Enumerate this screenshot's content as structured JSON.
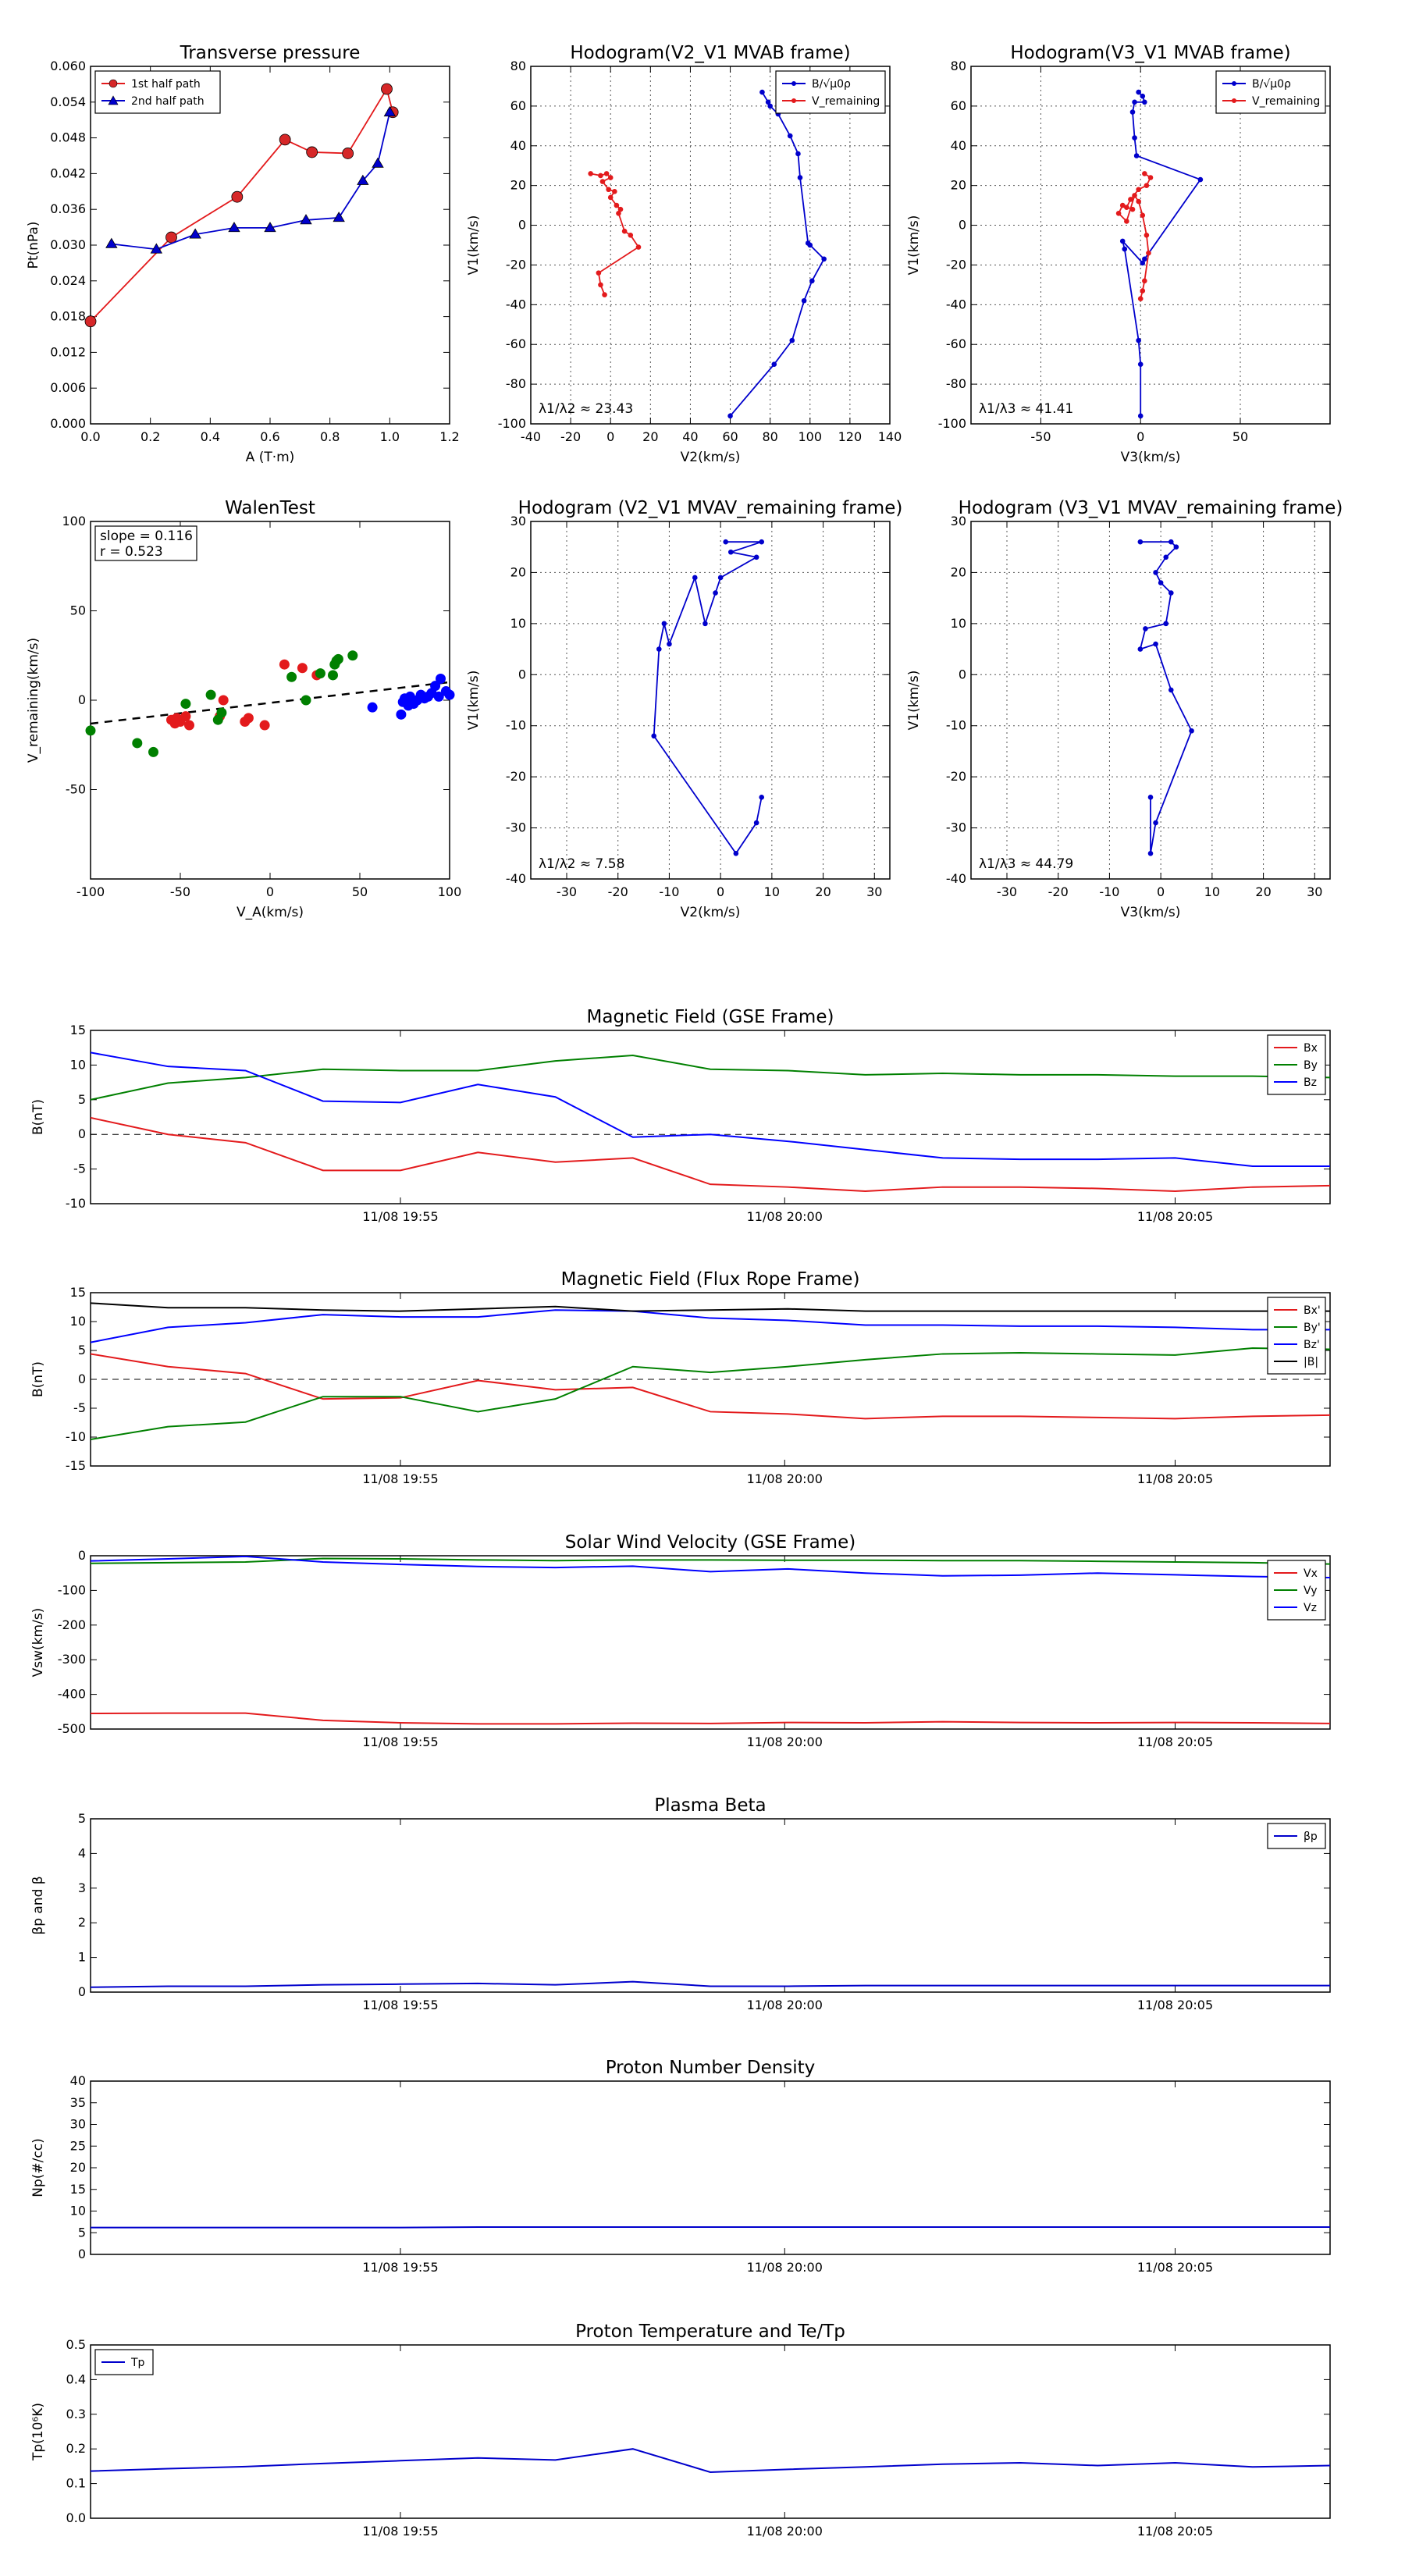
{
  "chart_data": [
    {
      "id": "tp",
      "type": "scatter",
      "title": "Transverse pressure",
      "xlabel": "A (T·m)",
      "ylabel": "Pt(nPa)",
      "xlim": [
        0.0,
        1.2
      ],
      "ylim": [
        0.0,
        0.06
      ],
      "xticks": [
        0.0,
        0.2,
        0.4,
        0.6,
        0.8,
        1.0,
        1.2
      ],
      "xtick_labels": [
        "0.0",
        "0.2",
        "0.4",
        "0.6",
        "0.8",
        "1.0",
        "1.2"
      ],
      "yticks": [
        0.0,
        0.006,
        0.012,
        0.018,
        0.024,
        0.03,
        0.036,
        0.042,
        0.048,
        0.054,
        0.06
      ],
      "ytick_labels": [
        "0.000",
        "0.006",
        "0.012",
        "0.018",
        "0.024",
        "0.030",
        "0.036",
        "0.042",
        "0.048",
        "0.054",
        "0.060"
      ],
      "grid": false,
      "legend": "top-left",
      "series": [
        {
          "name": "1st half path",
          "color": "#e31a1c",
          "marker": "circle",
          "line": true,
          "point_color": "#d62728",
          "x": [
            0.0,
            0.27,
            0.49,
            0.65,
            0.74,
            0.86,
            0.99,
            1.01
          ],
          "y": [
            0.0172,
            0.0313,
            0.0381,
            0.0477,
            0.0456,
            0.0454,
            0.0562,
            0.0523
          ]
        },
        {
          "name": "2nd half path",
          "color": "#0000cc",
          "marker": "triangle",
          "line": true,
          "point_color": "#0000cc",
          "x": [
            0.07,
            0.22,
            0.35,
            0.48,
            0.6,
            0.72,
            0.83,
            0.91,
            0.96,
            1.0
          ],
          "y": [
            0.0302,
            0.0293,
            0.0318,
            0.0329,
            0.0329,
            0.0342,
            0.0346,
            0.0408,
            0.0437,
            0.0523
          ]
        }
      ]
    },
    {
      "id": "h1",
      "type": "line",
      "title": "Hodogram(V2_V1 MVAB frame)",
      "xlabel": "V2(km/s)",
      "ylabel": "V1(km/s)",
      "xlim": [
        -40,
        140
      ],
      "ylim": [
        -100,
        80
      ],
      "xticks": [
        -40,
        -20,
        0,
        20,
        40,
        60,
        80,
        100,
        120,
        140
      ],
      "yticks": [
        -100,
        -80,
        -60,
        -40,
        -20,
        0,
        20,
        40,
        60,
        80
      ],
      "grid": true,
      "legend": "top-right",
      "annotation": "λ1/λ2 ≈ 23.43",
      "series": [
        {
          "name": "B/√μ0ρ",
          "color": "#0000cc",
          "marker": "dot",
          "x": [
            76,
            79,
            80,
            84,
            90,
            94,
            95,
            99,
            100,
            107,
            101,
            97,
            91,
            82,
            60
          ],
          "y": [
            67,
            62,
            60,
            56,
            45,
            36,
            24,
            -9,
            -10,
            -17,
            -28,
            -38,
            -58,
            -70,
            -96
          ]
        },
        {
          "name": "V_remaining",
          "color": "#e31a1c",
          "marker": "dot",
          "x": [
            -10,
            -5,
            -2,
            0,
            -4,
            -1,
            2,
            0,
            3,
            5,
            4,
            7,
            10,
            14,
            -6,
            -5,
            -3
          ],
          "y": [
            26,
            25,
            26,
            24,
            22,
            18,
            17,
            14,
            10,
            8,
            6,
            -3,
            -5,
            -11,
            -24,
            -30,
            -35
          ]
        }
      ]
    },
    {
      "id": "h2",
      "type": "line",
      "title": "Hodogram(V3_V1 MVAB frame)",
      "xlabel": "V3(km/s)",
      "ylabel": "V1(km/s)",
      "xlim": [
        -85,
        95
      ],
      "ylim": [
        -100,
        80
      ],
      "xticks": [
        -50,
        0,
        50
      ],
      "yticks": [
        -100,
        -80,
        -60,
        -40,
        -20,
        0,
        20,
        40,
        60,
        80
      ],
      "grid": true,
      "legend": "top-right",
      "annotation": "λ1/λ3 ≈ 41.41",
      "series": [
        {
          "name": "B/√μ0ρ",
          "color": "#0000cc",
          "marker": "dot",
          "x": [
            -1,
            1,
            2,
            -3,
            -4,
            -3,
            -2,
            30,
            2,
            1,
            -9,
            -8,
            -1,
            0,
            0
          ],
          "y": [
            67,
            65,
            62,
            62,
            57,
            44,
            35,
            23,
            -17,
            -19,
            -8,
            -12,
            -58,
            -70,
            -96
          ]
        },
        {
          "name": "V_remaining",
          "color": "#e31a1c",
          "marker": "dot",
          "x": [
            2,
            5,
            3,
            -1,
            -5,
            -7,
            -4,
            -9,
            -11,
            -7,
            -3,
            -1,
            1,
            3,
            4,
            2,
            1,
            0
          ],
          "y": [
            26,
            24,
            20,
            18,
            13,
            9,
            8,
            10,
            6,
            2,
            15,
            12,
            5,
            -5,
            -14,
            -28,
            -33,
            -37
          ]
        }
      ]
    },
    {
      "id": "walen",
      "type": "scatter",
      "title": "WalenTest",
      "xlabel": "V_A(km/s)",
      "ylabel": "V_remaining(km/s)",
      "xlim": [
        -100,
        100
      ],
      "ylim": [
        -100,
        100
      ],
      "xticks": [
        -100,
        -50,
        0,
        50,
        100
      ],
      "yticks": [
        -50,
        0,
        50,
        100
      ],
      "grid": false,
      "annotation": [
        "slope = 0.116",
        "r = 0.523"
      ],
      "fit": {
        "slope": 0.116,
        "intercept": -1.5
      },
      "series": [
        {
          "name": "",
          "color": "#e31a1c",
          "marker": "circle",
          "x": [
            -55,
            -53,
            -52,
            -50,
            -47,
            -45,
            -28,
            -26,
            -14,
            -12,
            -3,
            8,
            18,
            26
          ],
          "y": [
            -11,
            -13,
            -10,
            -12,
            -9,
            -14,
            -9,
            0,
            -12,
            -10,
            -14,
            20,
            18,
            14
          ]
        },
        {
          "name": "",
          "color": "#008000",
          "marker": "circle",
          "x": [
            -100,
            -74,
            -65,
            -47,
            -33,
            -29,
            -27,
            12,
            20,
            28,
            35,
            36,
            37,
            38,
            46
          ],
          "y": [
            -17,
            -24,
            -29,
            -2,
            3,
            -11,
            -7,
            13,
            0,
            15,
            14,
            20,
            22,
            23,
            25
          ]
        },
        {
          "name": "",
          "color": "#0000ff",
          "marker": "circle",
          "x": [
            57,
            73,
            74,
            75,
            77,
            78,
            80,
            82,
            84,
            86,
            88,
            90,
            92,
            94,
            95,
            98,
            100
          ],
          "y": [
            -4,
            -8,
            -1,
            1,
            -3,
            2,
            -2,
            0,
            3,
            1,
            2,
            4,
            8,
            2,
            12,
            5,
            3
          ]
        }
      ]
    },
    {
      "id": "h3",
      "type": "line",
      "title": "Hodogram (V2_V1 MVAV_remaining frame)",
      "xlabel": "V2(km/s)",
      "ylabel": "V1(km/s)",
      "xlim": [
        -37,
        33
      ],
      "ylim": [
        -40,
        30
      ],
      "xticks": [
        -30,
        -20,
        -10,
        0,
        10,
        20,
        30
      ],
      "yticks": [
        -40,
        -30,
        -20,
        -10,
        0,
        10,
        20,
        30
      ],
      "grid": true,
      "annotation": "λ1/λ2 ≈ 7.58",
      "series": [
        {
          "name": "",
          "color": "#0000cc",
          "marker": "dot",
          "x": [
            1,
            8,
            2,
            7,
            0,
            -1,
            -3,
            -5,
            -10,
            -11,
            -12,
            -13,
            3,
            7,
            8
          ],
          "y": [
            26,
            26,
            24,
            23,
            19,
            16,
            10,
            19,
            6,
            10,
            5,
            -12,
            -35,
            -29,
            -24
          ]
        }
      ]
    },
    {
      "id": "h4",
      "type": "line",
      "title": "Hodogram (V3_V1 MVAV_remaining frame)",
      "xlabel": "V3(km/s)",
      "ylabel": "V1(km/s)",
      "xlim": [
        -37,
        33
      ],
      "ylim": [
        -40,
        30
      ],
      "xticks": [
        -30,
        -20,
        -10,
        0,
        10,
        20,
        30
      ],
      "yticks": [
        -40,
        -30,
        -20,
        -10,
        0,
        10,
        20,
        30
      ],
      "grid": true,
      "annotation": "λ1/λ3 ≈ 44.79",
      "series": [
        {
          "name": "",
          "color": "#0000cc",
          "marker": "dot",
          "x": [
            -4,
            2,
            3,
            1,
            -1,
            0,
            2,
            1,
            -3,
            -4,
            -1,
            2,
            6,
            -1,
            -2,
            -2
          ],
          "y": [
            26,
            26,
            25,
            23,
            20,
            18,
            16,
            10,
            9,
            5,
            6,
            -3,
            -11,
            -29,
            -35,
            -24
          ]
        }
      ]
    },
    {
      "id": "ts1",
      "type": "line",
      "title": "Magnetic Field (GSE Frame)",
      "ylabel": "B(nT)",
      "ylim": [
        -10,
        15
      ],
      "yticks": [
        -10,
        -5,
        0,
        5,
        10,
        15
      ],
      "xticks": [
        "11/08 19:55",
        "11/08 20:00",
        "11/08 20:05"
      ],
      "zero_line": true,
      "legend": "top-right",
      "series": [
        {
          "name": "Bx",
          "color": "#e31a1c",
          "values": [
            2.4,
            0,
            -1.2,
            -5.2,
            -5.2,
            -2.6,
            -4,
            -3.4,
            -7.2,
            -7.6,
            -8.2,
            -7.6,
            -7.6,
            -7.8,
            -8.2,
            -7.6,
            -7.4
          ]
        },
        {
          "name": "By",
          "color": "#008000",
          "values": [
            5,
            7.4,
            8.2,
            9.4,
            9.2,
            9.2,
            10.6,
            11.4,
            9.4,
            9.2,
            8.6,
            8.8,
            8.6,
            8.6,
            8.4,
            8.4,
            8.2
          ]
        },
        {
          "name": "Bz",
          "color": "#0000ff",
          "values": [
            11.8,
            9.8,
            9.2,
            4.8,
            4.6,
            7.2,
            5.4,
            -0.4,
            0,
            -1,
            -2.2,
            -3.4,
            -3.6,
            -3.6,
            -3.4,
            -4.6,
            -4.6
          ]
        }
      ]
    },
    {
      "id": "ts2",
      "type": "line",
      "title": "Magnetic Field (Flux Rope Frame)",
      "ylabel": "B(nT)",
      "ylim": [
        -15,
        15
      ],
      "yticks": [
        -15,
        -10,
        -5,
        0,
        5,
        10,
        15
      ],
      "xticks": [
        "11/08 19:55",
        "11/08 20:00",
        "11/08 20:05"
      ],
      "zero_line": true,
      "legend": "top-right",
      "series": [
        {
          "name": "Bx'",
          "color": "#e31a1c",
          "values": [
            4.4,
            2.2,
            1,
            -3.4,
            -3.2,
            -0.2,
            -1.8,
            -1.4,
            -5.6,
            -6,
            -6.8,
            -6.4,
            -6.4,
            -6.6,
            -6.8,
            -6.4,
            -6.2
          ]
        },
        {
          "name": "By'",
          "color": "#008000",
          "values": [
            -10.4,
            -8.2,
            -7.4,
            -3,
            -3,
            -5.6,
            -3.4,
            2.2,
            1.2,
            2.2,
            3.4,
            4.4,
            4.6,
            4.4,
            4.2,
            5.4,
            5.2
          ]
        },
        {
          "name": "Bz'",
          "color": "#0000ff",
          "values": [
            6.4,
            9,
            9.8,
            11.2,
            10.8,
            10.8,
            12,
            11.8,
            10.6,
            10.2,
            9.4,
            9.4,
            9.2,
            9.2,
            9,
            8.6,
            8.6
          ]
        },
        {
          "name": "|B|",
          "color": "#000000",
          "values": [
            13.2,
            12.4,
            12.4,
            12,
            11.8,
            12.2,
            12.6,
            11.8,
            12,
            12.2,
            11.8,
            11.8,
            11.8,
            11.8,
            11.8,
            11.8,
            11.8
          ]
        }
      ]
    },
    {
      "id": "ts3",
      "type": "line",
      "title": "Solar Wind Velocity (GSE Frame)",
      "ylabel": "Vsw(km/s)",
      "ylim": [
        -500,
        0
      ],
      "yticks": [
        -500,
        -400,
        -300,
        -200,
        -100,
        0
      ],
      "xticks": [
        "11/08 19:55",
        "11/08 20:00",
        "11/08 20:05"
      ],
      "zero_line": false,
      "legend": "top-right",
      "series": [
        {
          "name": "Vx",
          "color": "#e31a1c",
          "values": [
            -455,
            -454,
            -454,
            -475,
            -482,
            -485,
            -485,
            -483,
            -484,
            -481,
            -482,
            -479,
            -481,
            -482,
            -481,
            -482,
            -484
          ]
        },
        {
          "name": "Vy",
          "color": "#008000",
          "values": [
            -22,
            -20,
            -18,
            -8,
            -9,
            -12,
            -14,
            -12,
            -12,
            -13,
            -13,
            -14,
            -14,
            -16,
            -18,
            -20,
            -24
          ]
        },
        {
          "name": "Vz",
          "color": "#0000ff",
          "values": [
            -15,
            -9,
            -2,
            -18,
            -25,
            -31,
            -34,
            -30,
            -46,
            -38,
            -50,
            -58,
            -56,
            -50,
            -55,
            -60,
            -63
          ]
        }
      ]
    },
    {
      "id": "ts4",
      "type": "line",
      "title": "Plasma Beta",
      "ylabel": "βp and β",
      "ylim": [
        0,
        5
      ],
      "yticks": [
        0,
        1,
        2,
        3,
        4,
        5
      ],
      "xticks": [
        "11/08 19:55",
        "11/08 20:00",
        "11/08 20:05"
      ],
      "zero_line": false,
      "legend": "top-right",
      "series": [
        {
          "name": "βp",
          "color": "#0000cc",
          "values": [
            0.14,
            0.17,
            0.17,
            0.21,
            0.23,
            0.25,
            0.21,
            0.3,
            0.17,
            0.17,
            0.19,
            0.19,
            0.19,
            0.19,
            0.19,
            0.19,
            0.19
          ]
        }
      ]
    },
    {
      "id": "ts5",
      "type": "line",
      "title": "Proton Number Density",
      "ylabel": "Np(#/cc)",
      "ylim": [
        0,
        40
      ],
      "yticks": [
        0,
        5,
        10,
        15,
        20,
        25,
        30,
        35,
        40
      ],
      "xticks": [
        "11/08 19:55",
        "11/08 20:00",
        "11/08 20:05"
      ],
      "zero_line": false,
      "legend": "",
      "series": [
        {
          "name": "",
          "color": "#0000cc",
          "values": [
            6.2,
            6.2,
            6.2,
            6.2,
            6.2,
            6.3,
            6.3,
            6.3,
            6.3,
            6.3,
            6.3,
            6.3,
            6.3,
            6.3,
            6.3,
            6.3,
            6.3
          ]
        }
      ]
    },
    {
      "id": "ts6",
      "type": "line",
      "title": "Proton Temperature and Te/Tp",
      "ylabel": "Tp(10⁶K)",
      "ylim": [
        0,
        0.5
      ],
      "yticks": [
        0.0,
        0.1,
        0.2,
        0.3,
        0.4,
        0.5
      ],
      "ytick_labels": [
        "0.0",
        "0.1",
        "0.2",
        "0.3",
        "0.4",
        "0.5"
      ],
      "xticks": [
        "11/08 19:55",
        "11/08 20:00",
        "11/08 20:05"
      ],
      "zero_line": false,
      "legend": "top-left",
      "series": [
        {
          "name": "Tp",
          "color": "#0000cc",
          "values": [
            0.136,
            0.143,
            0.149,
            0.158,
            0.166,
            0.174,
            0.168,
            0.2,
            0.133,
            0.141,
            0.148,
            0.156,
            0.16,
            0.152,
            0.16,
            0.148,
            0.152
          ]
        }
      ]
    }
  ]
}
